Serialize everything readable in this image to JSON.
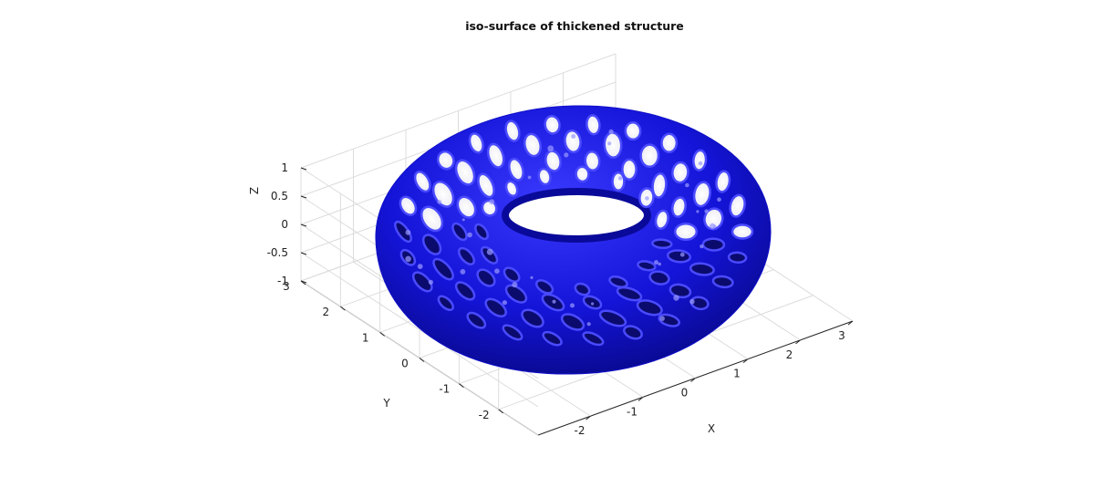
{
  "chart_data": {
    "type": "surface3d",
    "title": "iso-surface of thickened structure",
    "xlabel": "X",
    "ylabel": "Y",
    "zlabel": "Z",
    "xlim": [
      -3,
      3
    ],
    "ylim": [
      -3,
      3
    ],
    "zlim": [
      -1,
      1
    ],
    "xticks": [
      -2,
      -1,
      0,
      1,
      2,
      3
    ],
    "xtick_labels": [
      "-2",
      "-1",
      "0",
      "1",
      "2",
      "3"
    ],
    "yticks": [
      -2,
      -1,
      0,
      1,
      2,
      3
    ],
    "ytick_labels": [
      "-2",
      "-1",
      "0",
      "1",
      "2",
      "3"
    ],
    "zticks": [
      -1,
      -0.5,
      0,
      0.5,
      1
    ],
    "ztick_labels": [
      "-1",
      "-0.5",
      "0",
      "0.5",
      "1"
    ],
    "grid": true,
    "surface_color": "#1010c8"
  }
}
